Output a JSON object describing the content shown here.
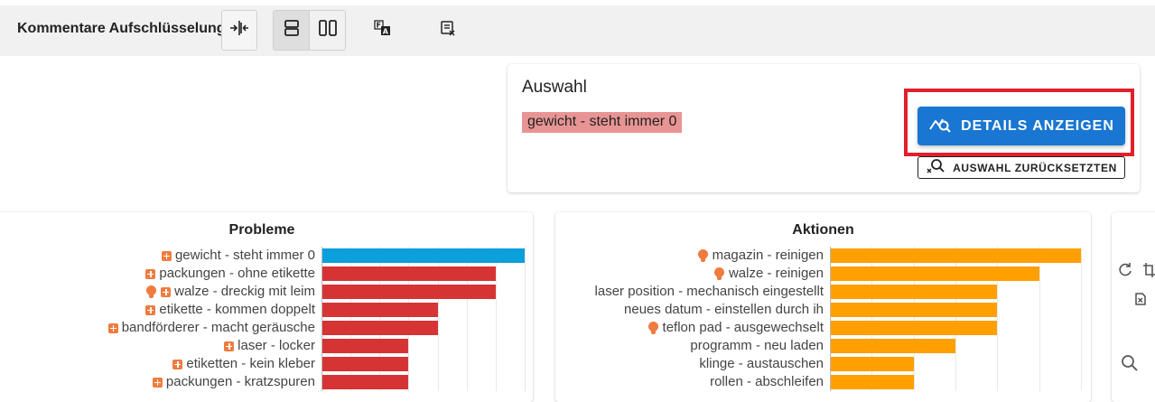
{
  "toolbar": {
    "title": "Kommentare Aufschlüsselung"
  },
  "selection": {
    "title": "Auswahl",
    "chip": "gewicht - steht immer 0",
    "details_button": "DETAILS ANZEIGEN",
    "reset_button": "AUSWAHL ZURÜCKSETZTEN"
  },
  "colors": {
    "selected_bar": "#0b9fdb",
    "problem_bar": "#d63434",
    "action_bar": "#ff9f00",
    "primary_button": "#1976d2",
    "highlight_box": "#e0202b",
    "chip_bg": "#e89494",
    "icon_orange": "#f07b3f"
  },
  "chart_data": [
    {
      "type": "bar",
      "orientation": "horizontal",
      "title": "Probleme",
      "categories": [
        "gewicht - steht immer 0",
        "packungen - ohne etikette",
        "walze - dreckig mit leim",
        "etikette - kommen doppelt",
        "bandförderer - macht geräusche",
        "laser - locker",
        "etiketten - kein kleber",
        "packungen - kratzspuren"
      ],
      "values": [
        7,
        6,
        6,
        4,
        4,
        3,
        3,
        3
      ],
      "xlim": [
        0,
        7
      ],
      "grid": true,
      "selected": "gewicht - steht immer 0",
      "label_icons": [
        [
          "plus-icon"
        ],
        [
          "plus-icon"
        ],
        [
          "bulb-icon",
          "plus-icon"
        ],
        [
          "plus-icon"
        ],
        [
          "plus-icon"
        ],
        [
          "plus-icon"
        ],
        [
          "plus-icon"
        ],
        [
          "plus-icon"
        ]
      ]
    },
    {
      "type": "bar",
      "orientation": "horizontal",
      "title": "Aktionen",
      "categories": [
        "magazin - reinigen",
        "walze - reinigen",
        "laser position - mechanisch eingestellt",
        "neues datum - einstellen durch ih",
        "teflon pad - ausgewechselt",
        "programm - neu laden",
        "klinge - austauschen",
        "rollen - abschleifen"
      ],
      "values": [
        6,
        5,
        4,
        4,
        4,
        3,
        2,
        2
      ],
      "xlim": [
        0,
        6
      ],
      "grid": true,
      "label_icons": [
        [
          "bulb-icon"
        ],
        [
          "bulb-icon"
        ],
        [],
        [],
        [
          "bulb-icon"
        ],
        [],
        [],
        []
      ]
    }
  ]
}
